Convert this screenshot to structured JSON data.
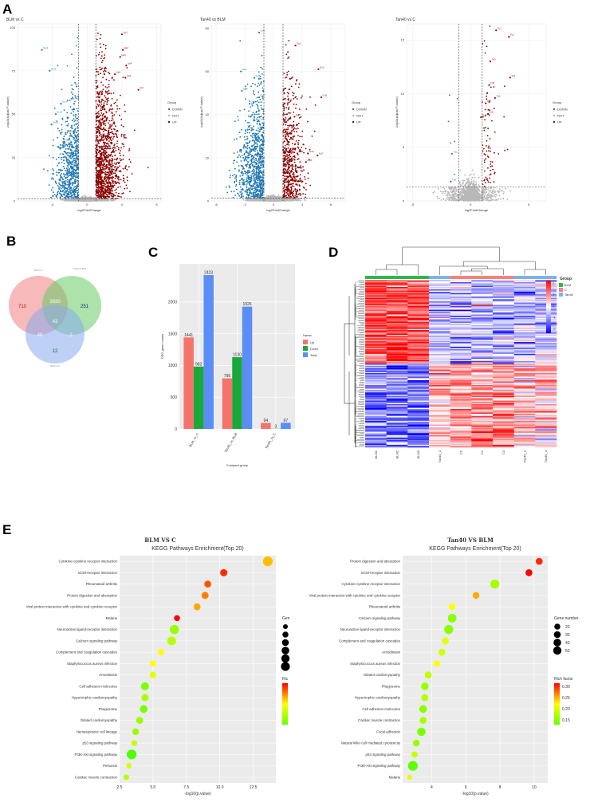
{
  "panels": {
    "a": "A",
    "b": "B",
    "c": "C",
    "d": "D",
    "e": "E"
  },
  "chart_data": [
    {
      "type": "scatter",
      "panel": "A1",
      "title": "BLM vs C",
      "xlabel": "log2FoldChange",
      "ylabel": "-log10(Adjust P-value)",
      "xlim": [
        -8,
        8.5
      ],
      "ylim": [
        0,
        102
      ],
      "xticks": [
        "-4",
        "0",
        "4",
        "8"
      ],
      "yticks": [
        "0",
        "25",
        "50",
        "75",
        "100"
      ],
      "thresholds": {
        "fc": 1,
        "p": 1.3
      },
      "legend": {
        "title": "Group",
        "items": [
          "DOWN",
          "NOT",
          "UP"
        ]
      },
      "colors": {
        "DOWN": "#1f77b4",
        "NOT": "#b8b8b8",
        "UP": "#8b0000"
      },
      "down_labels": [
        {
          "text": "Gm1",
          "x": -5.2,
          "y": 87
        },
        {
          "text": "Gm2",
          "x": -4.3,
          "y": 75
        },
        {
          "text": "Gm3",
          "x": -3.0,
          "y": 56
        },
        {
          "text": "Gm4",
          "x": -3.6,
          "y": 50
        },
        {
          "text": "Gm5",
          "x": -4.1,
          "y": 44
        },
        {
          "text": "Gm6",
          "x": -2.6,
          "y": 34
        },
        {
          "text": "Gm7",
          "x": -3.3,
          "y": 31
        }
      ],
      "up_labels": [
        {
          "text": "Up1",
          "x": 4.0,
          "y": 96
        },
        {
          "text": "Up2",
          "x": 4.1,
          "y": 87
        },
        {
          "text": "Up3",
          "x": 3.8,
          "y": 83
        },
        {
          "text": "Up4",
          "x": 4.5,
          "y": 78
        },
        {
          "text": "Up5",
          "x": 3.2,
          "y": 73
        },
        {
          "text": "Up6",
          "x": 4.4,
          "y": 71
        },
        {
          "text": "Up7",
          "x": 5.9,
          "y": 64
        }
      ]
    },
    {
      "type": "scatter",
      "panel": "A2",
      "title": "Tan40 vs BLM",
      "xlabel": "log2FoldChange",
      "ylabel": "-log10(Adjust P-value)",
      "xlim": [
        -6.5,
        7.5
      ],
      "ylim": [
        0,
        82
      ],
      "xticks": [
        "-6",
        "-3",
        "0",
        "3",
        "6"
      ],
      "yticks": [
        "0",
        "20",
        "40",
        "60",
        "80"
      ],
      "thresholds": {
        "fc": 1,
        "p": 1.3
      },
      "legend": {
        "title": "Group",
        "items": [
          "DOWN",
          "NOT",
          "UP"
        ]
      },
      "colors": {
        "DOWN": "#1f77b4",
        "NOT": "#b8b8b8",
        "UP": "#8b0000"
      },
      "down_labels": [
        {
          "text": "Gd1",
          "x": -1.5,
          "y": 78
        },
        {
          "text": "Gd2",
          "x": -3.4,
          "y": 60
        },
        {
          "text": "Gd3",
          "x": -2.0,
          "y": 57
        },
        {
          "text": "Gd4",
          "x": -3.3,
          "y": 51
        },
        {
          "text": "Gd5",
          "x": -1.5,
          "y": 48
        },
        {
          "text": "Gd6",
          "x": -2.5,
          "y": 45
        },
        {
          "text": "Gd7",
          "x": -2.4,
          "y": 39
        },
        {
          "text": "Gd8",
          "x": -1.6,
          "y": 37
        },
        {
          "text": "Gd9",
          "x": -2.7,
          "y": 33
        }
      ],
      "up_labels": [
        {
          "text": "Gu1",
          "x": 2.3,
          "y": 72
        },
        {
          "text": "Gu2",
          "x": 4.7,
          "y": 61
        },
        {
          "text": "Gu3",
          "x": 5.0,
          "y": 48
        },
        {
          "text": "Gu4",
          "x": 2.2,
          "y": 39
        },
        {
          "text": "Gu5",
          "x": 2.5,
          "y": 22
        },
        {
          "text": "Gu6",
          "x": 3.6,
          "y": 22
        },
        {
          "text": "Gu7",
          "x": 4.6,
          "y": 21
        },
        {
          "text": "Gu8",
          "x": 3.4,
          "y": 18
        }
      ]
    },
    {
      "type": "scatter",
      "panel": "A3",
      "title": "Tan40 vs C",
      "xlabel": "log2FoldChange",
      "ylabel": "-log10(Adjust P-value)",
      "xlim": [
        -5.5,
        6.5
      ],
      "ylim": [
        0,
        16.5
      ],
      "xticks": [
        "-5",
        "0",
        "5"
      ],
      "yticks": [
        "0",
        "5",
        "10",
        "15"
      ],
      "thresholds": {
        "fc": 1,
        "p": 1.3
      },
      "legend": {
        "title": "Group",
        "items": [
          "DOWN",
          "NOT",
          "UP"
        ]
      },
      "colors": {
        "DOWN": "#1f77b4",
        "NOT": "#b8b8b8",
        "UP": "#8b0000"
      },
      "down_labels": [
        {
          "text": "Td1",
          "x": -1.6,
          "y": 4.4
        },
        {
          "text": "Td2",
          "x": -1.7,
          "y": 1.8
        }
      ],
      "up_labels": [
        {
          "text": "Tu1",
          "x": 2.2,
          "y": 15.9
        },
        {
          "text": "Tu2",
          "x": 3.3,
          "y": 15.3
        },
        {
          "text": "Tu3",
          "x": 1.7,
          "y": 13.0
        },
        {
          "text": "Tu4",
          "x": 3.4,
          "y": 11.5
        },
        {
          "text": "Tu5",
          "x": 1.6,
          "y": 10.8
        },
        {
          "text": "Tu6",
          "x": 2.1,
          "y": 9.6
        },
        {
          "text": "Tu7",
          "x": 1.3,
          "y": 9.1
        },
        {
          "text": "Tu8",
          "x": 1.5,
          "y": 8.1
        },
        {
          "text": "Tu9",
          "x": 0.9,
          "y": 7.8
        }
      ]
    },
    {
      "type": "venn",
      "panel": "B",
      "sets": [
        {
          "name": "BLM vs C",
          "color": "#f08080"
        },
        {
          "name": "Tan40 vs BLM",
          "color": "#66cc66"
        },
        {
          "name": "Tan40 vs C",
          "color": "#88aaee"
        }
      ],
      "regions": {
        "only_a": 710,
        "only_b": 251,
        "only_c": 12,
        "ab": 1630,
        "ac": 40,
        "bc": 2,
        "abc": 43
      }
    },
    {
      "type": "bar",
      "panel": "C",
      "categories": [
        "BLM_vs_C",
        "Tan40_vs_BLM",
        "Tan40_vs_C"
      ],
      "series": [
        {
          "name": "Up",
          "color": "#f4736b",
          "values": [
            1441,
            796,
            94
          ]
        },
        {
          "name": "Down",
          "color": "#1ba83a",
          "values": [
            982,
            1130,
            3
          ]
        },
        {
          "name": "Total",
          "color": "#5a8ef6",
          "values": [
            2423,
            1926,
            97
          ]
        }
      ],
      "xlabel": "Compare group",
      "ylabel": "DEG gene counts",
      "ylim": [
        0,
        2600
      ],
      "yticks": [
        "0",
        "500",
        "1000",
        "1500",
        "2000"
      ],
      "legend": {
        "title": "Name",
        "items": [
          "Up",
          "Down",
          "Total"
        ]
      }
    },
    {
      "type": "heatmap",
      "panel": "D",
      "columns": [
        "BLM1",
        "BLM2",
        "BLM3",
        "Tan40_2",
        "C1",
        "C2",
        "C3",
        "Tan40_1",
        "Tan40_3"
      ],
      "group_colors": [
        "#2db84d",
        "#2db84d",
        "#2db84d",
        "#7fb2e6",
        "#f3837b",
        "#f3837b",
        "#f3837b",
        "#7fb2e6",
        "#7fb2e6"
      ],
      "legend_title": "Group",
      "groups": [
        {
          "name": "BLM",
          "color": "#2db84d"
        },
        {
          "name": "C",
          "color": "#f3837b"
        },
        {
          "name": "Tan40",
          "color": "#7fb2e6"
        }
      ],
      "scale_ticks": [
        "2",
        "1",
        "0",
        "-1",
        "-2"
      ]
    },
    {
      "type": "scatter",
      "panel": "E1",
      "heading": "BLM VS C",
      "title": "KEGG Pathways Enrichment(Top 20)",
      "xlabel": "-log10(p.value)",
      "xlim": [
        2.5,
        14.2
      ],
      "xticks": [
        2.5,
        5.0,
        7.5,
        10.0,
        12.5
      ],
      "legend_size_title": "Gen",
      "legend_color_title": "Ric",
      "points": [
        {
          "term": "Cytokine-cytokine receptor interaction",
          "x": 13.6,
          "size": 55,
          "rf": 0.27
        },
        {
          "term": "ECM-receptor interaction",
          "x": 10.3,
          "size": 25,
          "rf": 0.34
        },
        {
          "term": "Rheumatoid arthritis",
          "x": 9.1,
          "size": 22,
          "rf": 0.32
        },
        {
          "term": "Protein digestion and absorption",
          "x": 8.9,
          "size": 24,
          "rf": 0.3
        },
        {
          "term": "Viral protein interaction with cytokine and cytokine receptor",
          "x": 8.3,
          "size": 22,
          "rf": 0.28
        },
        {
          "term": "Malaria",
          "x": 6.8,
          "size": 14,
          "rf": 0.36
        },
        {
          "term": "Neuroactive ligand-receptor interaction",
          "x": 6.6,
          "size": 48,
          "rf": 0.17
        },
        {
          "term": "Calcium signaling pathway",
          "x": 6.4,
          "size": 42,
          "rf": 0.19
        },
        {
          "term": "Complement and coagulation cascades",
          "x": 5.6,
          "size": 18,
          "rf": 0.24
        },
        {
          "term": "Staphylococcus aureus infection",
          "x": 5.0,
          "size": 15,
          "rf": 0.24
        },
        {
          "term": "Amoebiasis",
          "x": 5.0,
          "size": 18,
          "rf": 0.22
        },
        {
          "term": "Cell adhesion molecules",
          "x": 4.4,
          "size": 32,
          "rf": 0.15
        },
        {
          "term": "Hypertrophic cardiomyopathy",
          "x": 4.4,
          "size": 24,
          "rf": 0.18
        },
        {
          "term": "Phagosome",
          "x": 4.3,
          "size": 30,
          "rf": 0.15
        },
        {
          "term": "Dilated cardiomyopathy",
          "x": 4.0,
          "size": 22,
          "rf": 0.17
        },
        {
          "term": "Hematopoietic cell lineage",
          "x": 3.7,
          "size": 20,
          "rf": 0.17
        },
        {
          "term": "p53 signaling pathway",
          "x": 3.6,
          "size": 14,
          "rf": 0.2
        },
        {
          "term": "PI3K-Akt signaling pathway",
          "x": 3.4,
          "size": 55,
          "rf": 0.12
        },
        {
          "term": "Pertussis",
          "x": 3.2,
          "size": 10,
          "rf": 0.21
        },
        {
          "term": "Cardiac muscle contraction",
          "x": 3.0,
          "size": 12,
          "rf": 0.19
        }
      ]
    },
    {
      "type": "scatter",
      "panel": "E2",
      "heading": "Tan40 VS BLM",
      "title": "KEGG Pathways Enrichment(Top 20)",
      "xlabel": "-log10(p.value)",
      "xlim": [
        2.3,
        10.8
      ],
      "xticks": [
        4,
        6,
        8,
        10
      ],
      "legend_size_title": "Gene number",
      "legend_size_items": [
        20,
        30,
        40,
        50
      ],
      "legend_color_title": "Rich factor",
      "legend_color_ticks": [
        "0.30",
        "0.25",
        "0.20",
        "0.15"
      ],
      "points": [
        {
          "term": "Protein digestion and absorption",
          "x": 10.3,
          "size": 22,
          "rf": 0.34
        },
        {
          "term": "ECM-receptor interaction",
          "x": 9.7,
          "size": 22,
          "rf": 0.36
        },
        {
          "term": "Cytokine-cytokine receptor interaction",
          "x": 7.7,
          "size": 45,
          "rf": 0.18
        },
        {
          "term": "Viral protein interaction with cytokine and cytokine receptor",
          "x": 6.6,
          "size": 20,
          "rf": 0.28
        },
        {
          "term": "Rheumatoid arthritis",
          "x": 5.2,
          "size": 20,
          "rf": 0.24
        },
        {
          "term": "Calcium signaling pathway",
          "x": 5.2,
          "size": 40,
          "rf": 0.16
        },
        {
          "term": "Neuroactive ligand-receptor interaction",
          "x": 5.0,
          "size": 46,
          "rf": 0.16
        },
        {
          "term": "Complement and coagulation cascades",
          "x": 4.8,
          "size": 22,
          "rf": 0.22
        },
        {
          "term": "Amoebiasis",
          "x": 4.6,
          "size": 22,
          "rf": 0.21
        },
        {
          "term": "Staphylococcus aureus infection",
          "x": 4.3,
          "size": 18,
          "rf": 0.24
        },
        {
          "term": "Dilated cardiomyopathy",
          "x": 3.8,
          "size": 22,
          "rf": 0.2
        },
        {
          "term": "Phagosome",
          "x": 3.6,
          "size": 28,
          "rf": 0.17
        },
        {
          "term": "Hypertrophic cardiomyopathy",
          "x": 3.6,
          "size": 22,
          "rf": 0.19
        },
        {
          "term": "Cell adhesion molecules",
          "x": 3.5,
          "size": 30,
          "rf": 0.16
        },
        {
          "term": "Cardiac muscle contraction",
          "x": 3.5,
          "size": 22,
          "rf": 0.18
        },
        {
          "term": "Focal adhesion",
          "x": 3.4,
          "size": 38,
          "rf": 0.15
        },
        {
          "term": "Natural killer cell mediated cytotoxicity",
          "x": 3.1,
          "size": 22,
          "rf": 0.17
        },
        {
          "term": "p53 signaling pathway",
          "x": 3.0,
          "size": 16,
          "rf": 0.2
        },
        {
          "term": "PI3K-Akt signaling pathway",
          "x": 2.9,
          "size": 55,
          "rf": 0.13
        },
        {
          "term": "Malaria",
          "x": 2.7,
          "size": 8,
          "rf": 0.22
        }
      ]
    }
  ]
}
